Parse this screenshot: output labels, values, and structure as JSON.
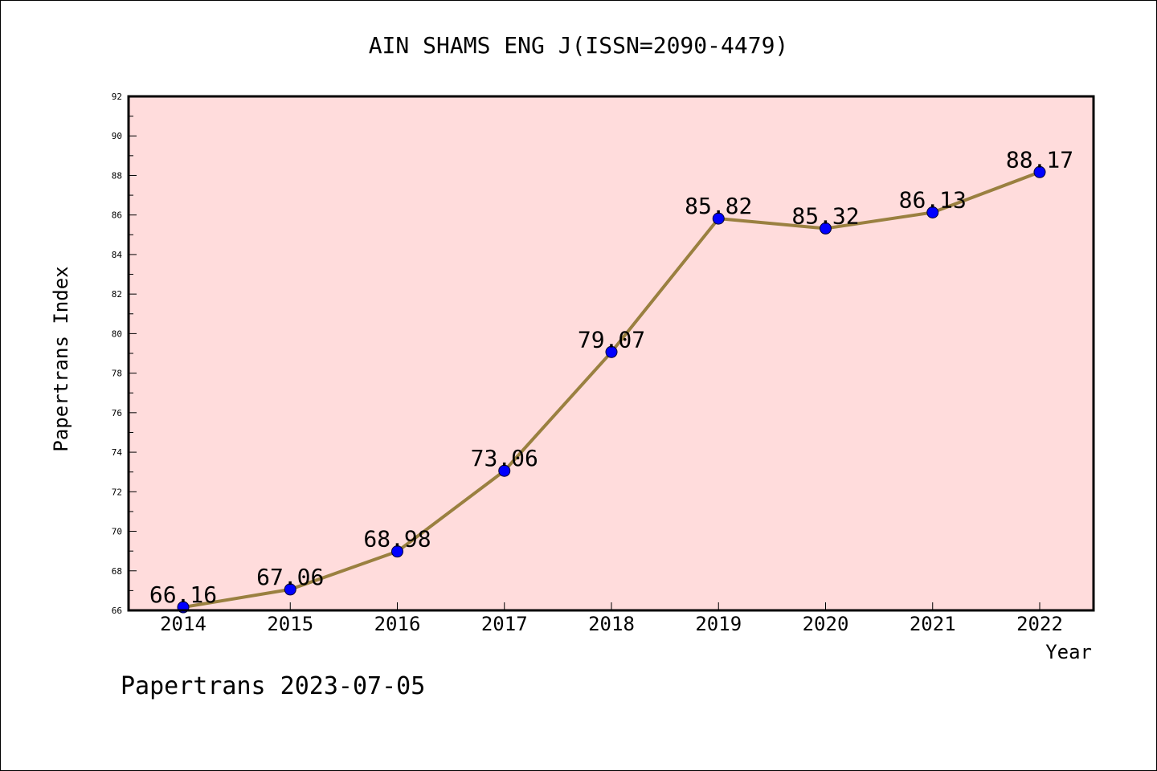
{
  "chart_data": {
    "type": "line",
    "title": "AIN SHAMS ENG J(ISSN=2090-4479)",
    "xlabel": "Year",
    "ylabel": "Papertrans Index",
    "categories": [
      "2014",
      "2015",
      "2016",
      "2017",
      "2018",
      "2019",
      "2020",
      "2021",
      "2022"
    ],
    "values": [
      66.16,
      67.06,
      68.98,
      73.06,
      79.07,
      85.82,
      85.32,
      86.13,
      88.17
    ],
    "value_labels": [
      "66.16",
      "67.06",
      "68.98",
      "73.06",
      "79.07",
      "85.82",
      "85.32",
      "86.13",
      "88.17"
    ],
    "ylim": [
      66,
      92
    ],
    "yticks": [
      66,
      68,
      70,
      72,
      74,
      76,
      78,
      80,
      82,
      84,
      86,
      88,
      90,
      92
    ],
    "grid": false,
    "colors": {
      "plot_background": "#ffdcdc",
      "line": "#9a8040",
      "marker": "#0000ff"
    }
  },
  "footer": "Papertrans 2023-07-05"
}
